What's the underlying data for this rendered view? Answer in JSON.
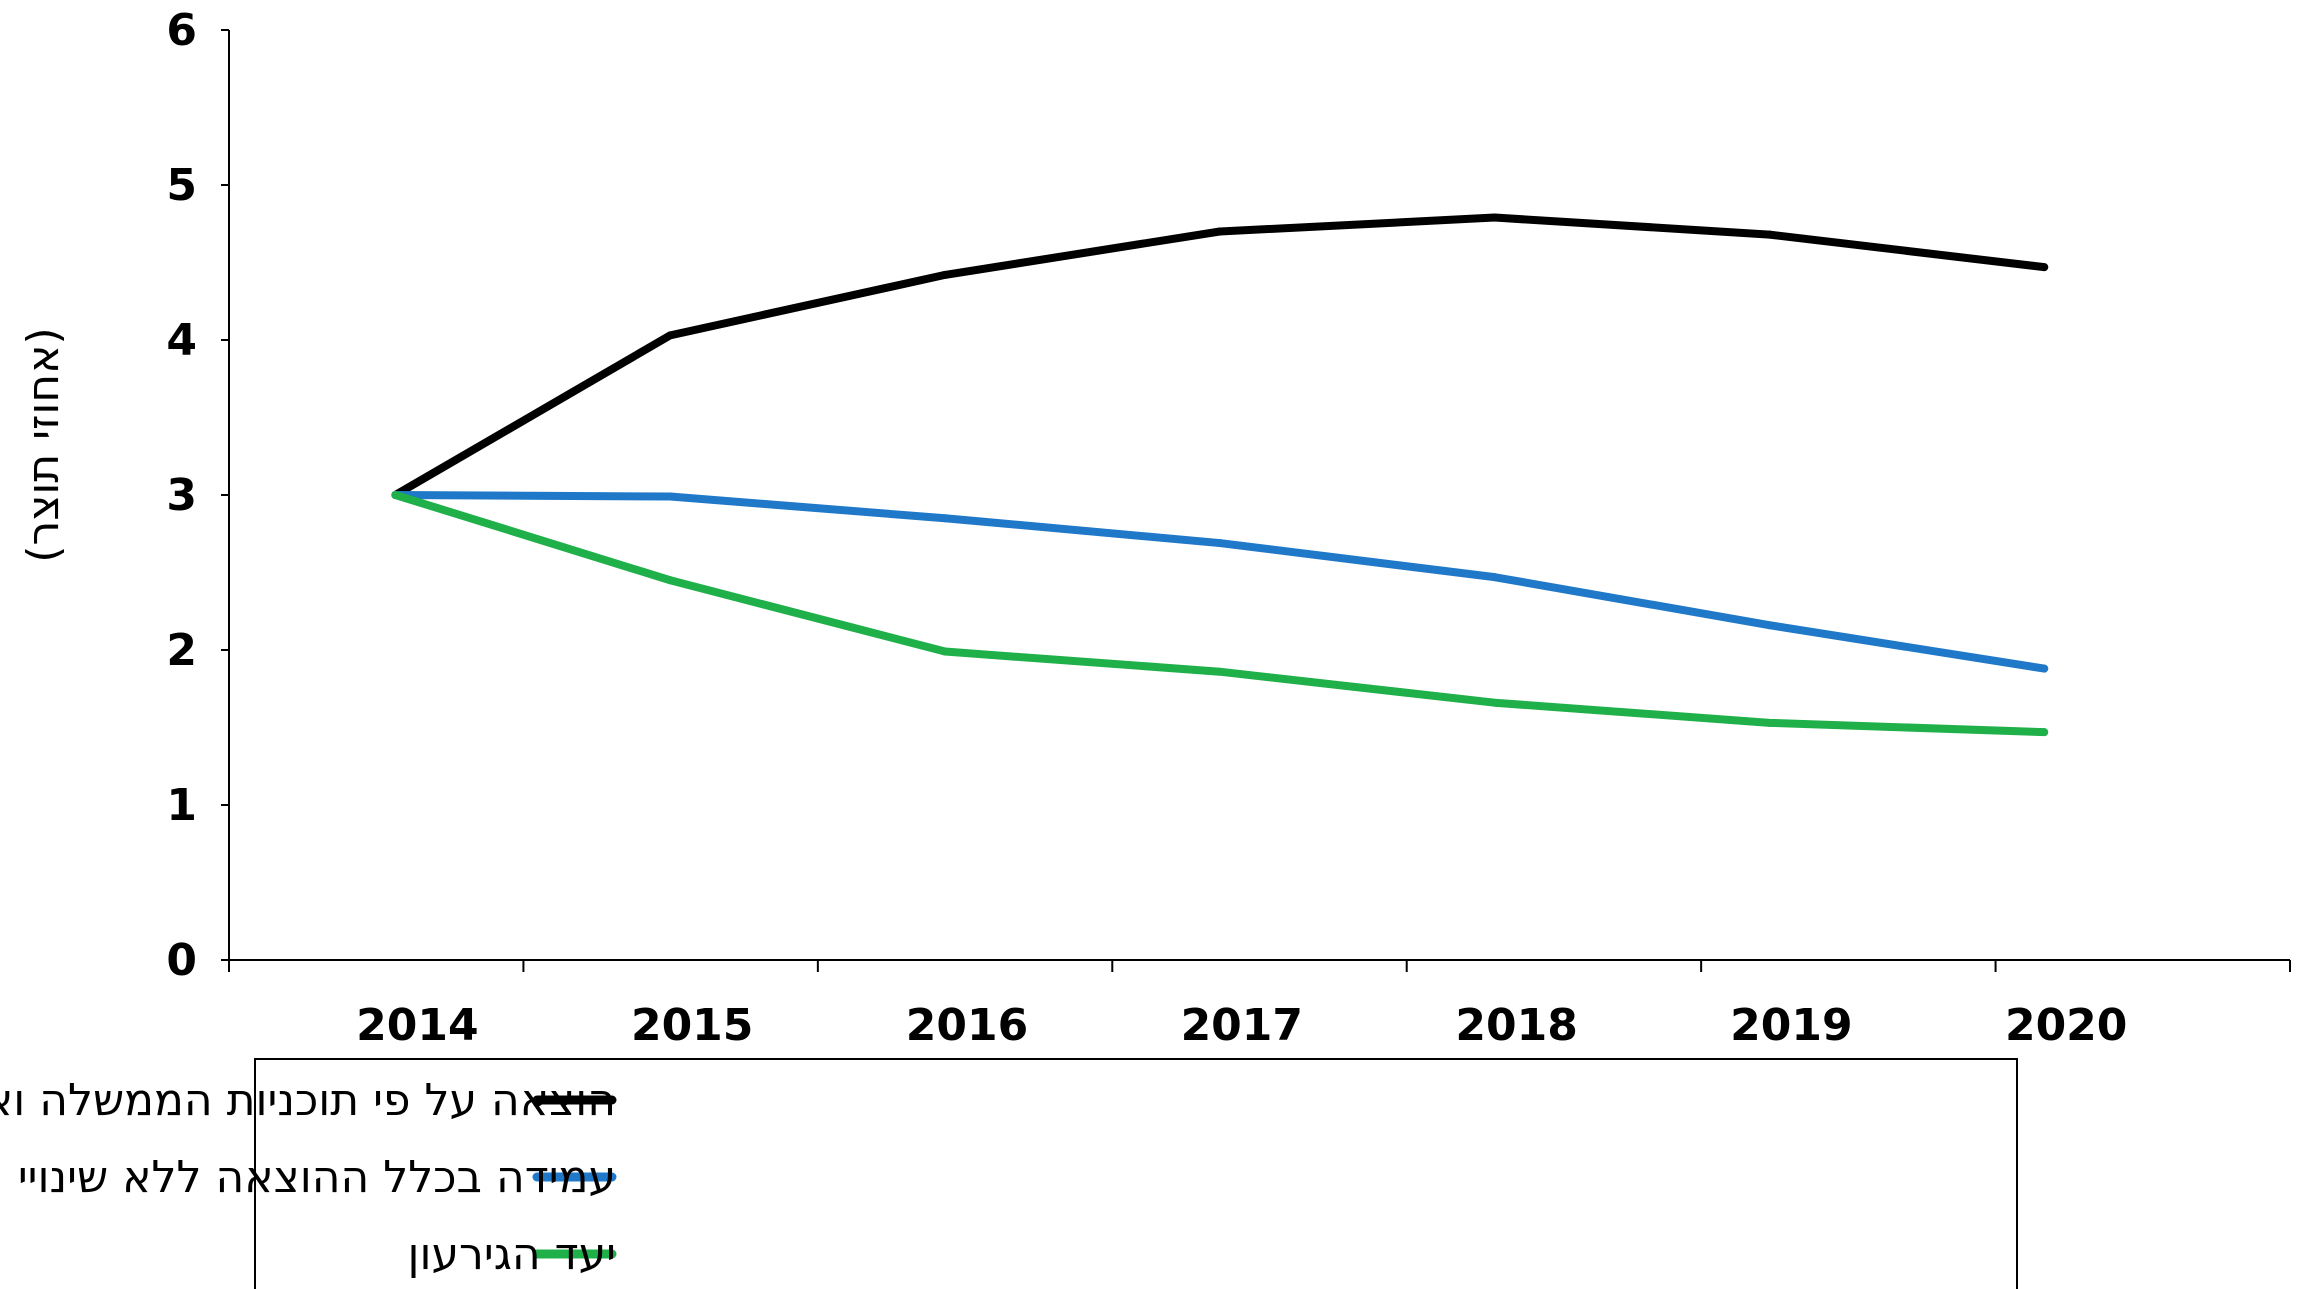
{
  "chart_data": {
    "type": "line",
    "title": "",
    "xlabel": "",
    "ylabel": "(אחוזי תוצר)",
    "x": [
      "2014",
      "2015",
      "2016",
      "2017",
      "2018",
      "2019",
      "2020"
    ],
    "ylim": [
      0,
      6
    ],
    "yticks": [
      "0",
      "1",
      "2",
      "3",
      "4",
      "5",
      "6"
    ],
    "grid": false,
    "legend_position": "bottom",
    "series": [
      {
        "name": "הוצאה על פי תוכניות הממשלה ואי שינוי בשיעורי המס",
        "color": "#000000",
        "values": [
          3.0,
          4.03,
          4.42,
          4.7,
          4.79,
          4.68,
          4.47
        ]
      },
      {
        "name": "עמידה בכלל ההוצאה ללא שינויי מיסוי",
        "color": "#1f78c8",
        "values": [
          3.0,
          2.99,
          2.85,
          2.69,
          2.47,
          2.16,
          1.88
        ]
      },
      {
        "name": "יעד הגירעון",
        "color": "#1fb04a",
        "values": [
          3.0,
          2.45,
          1.99,
          1.86,
          1.66,
          1.53,
          1.47
        ]
      }
    ]
  }
}
